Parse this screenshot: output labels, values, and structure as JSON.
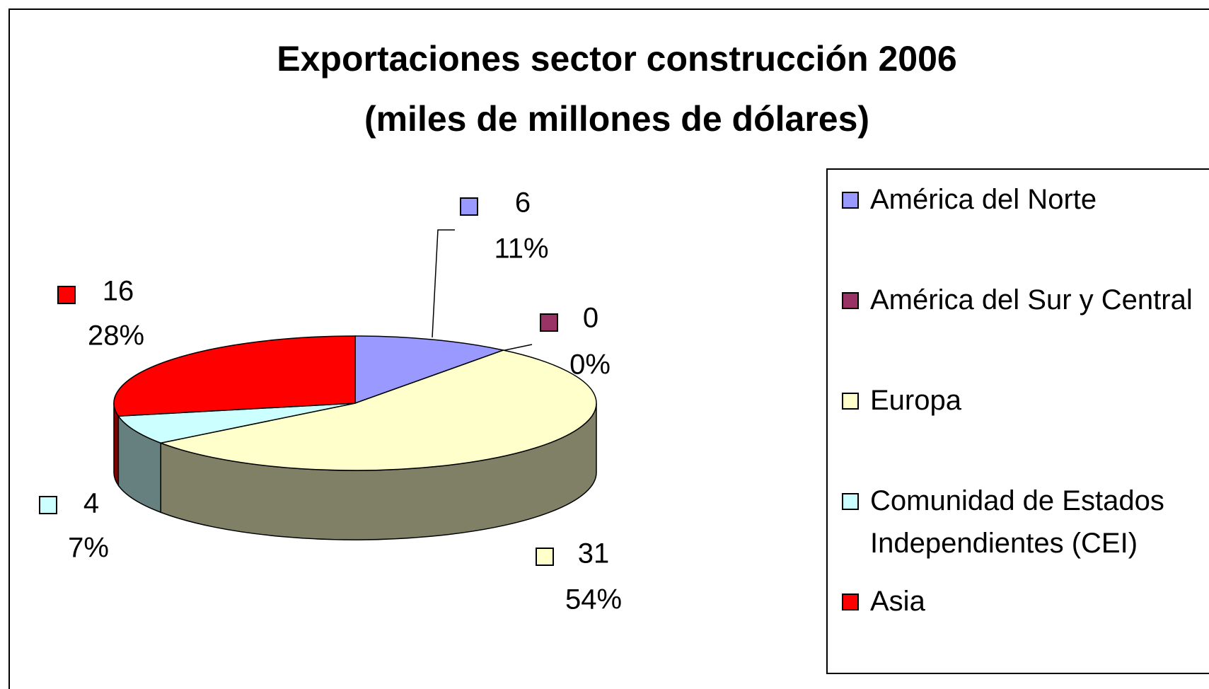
{
  "chart_data": {
    "type": "pie",
    "title": "Exportaciones sector construcción 2006",
    "subtitle": "(miles de millones de dólares)",
    "categories": [
      "América del Norte",
      "América del Sur y Central",
      "Europa",
      "Comunidad de Estados Independientes (CEI)",
      "Asia"
    ],
    "values": [
      6,
      0,
      31,
      4,
      16
    ],
    "percent_labels": [
      "11%",
      "0%",
      "54%",
      "7%",
      "28%"
    ],
    "colors": [
      "#9999ff",
      "#993366",
      "#ffffcc",
      "#ccffff",
      "#ff0000"
    ],
    "legend": "right"
  }
}
